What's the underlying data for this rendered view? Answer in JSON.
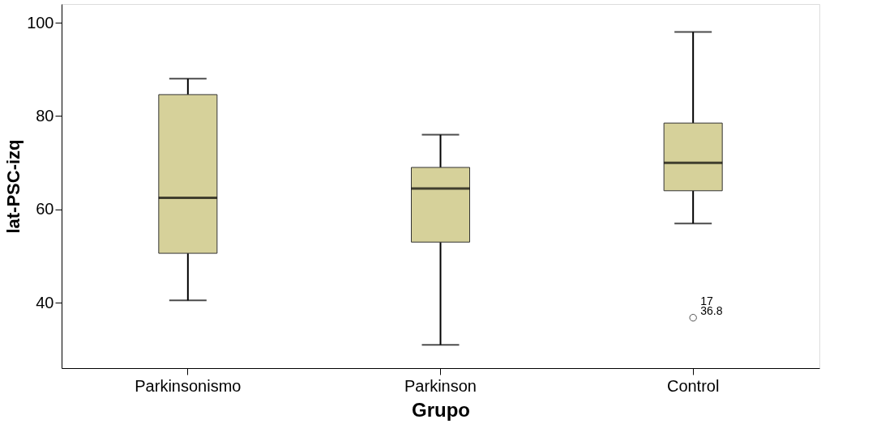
{
  "chart_data": {
    "type": "box",
    "xlabel": "Grupo",
    "ylabel": "lat-PSC-izq",
    "categories": [
      "Parkinsonismo",
      "Parkinson",
      "Control"
    ],
    "series": [
      {
        "color": "#d6d19a",
        "boxes": [
          {
            "low": 40.5,
            "q1": 50.6,
            "median": 62.5,
            "q3": 84.6,
            "high": 88
          },
          {
            "low": 31,
            "q1": 53,
            "median": 64.5,
            "q3": 69,
            "high": 76
          },
          {
            "low": 57,
            "q1": 64,
            "median": 70,
            "q3": 78.5,
            "high": 98,
            "outliers": [
              36.8
            ]
          }
        ]
      }
    ],
    "ylim": [
      26,
      104
    ],
    "yticks": [
      40,
      60,
      80,
      100
    ],
    "grid": false,
    "annotations": [
      "17",
      "36.8"
    ]
  }
}
